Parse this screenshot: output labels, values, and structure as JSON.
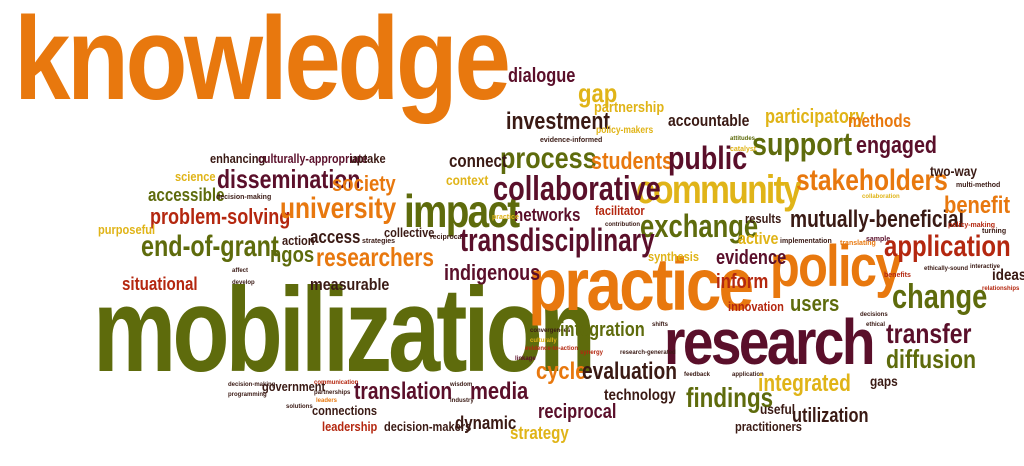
{
  "colors": {
    "orange": "#e8780e",
    "yellow": "#e0b418",
    "olive": "#5e6b0c",
    "maroon": "#5a0f2a",
    "red": "#b4270f",
    "dark": "#3a1a14",
    "background": "#ffffff"
  },
  "words": {
    "knowledge": "knowledge",
    "mobilization": "mobilization",
    "practice": "practice",
    "research": "research",
    "policy": "policy",
    "community": "community",
    "impact": "impact",
    "dialogue": "dialogue",
    "gap": "gap",
    "investment": "investment",
    "partnership": "partnership",
    "accountable": "accountable",
    "participatory": "participatory",
    "methods": "methods",
    "policy_makers": "policy-makers",
    "process": "process",
    "students": "students",
    "public": "public",
    "support": "support",
    "engaged": "engaged",
    "connect": "connect",
    "enhancing": "enhancing",
    "culturally_appropriate": "culturally-appropriate",
    "uptake": "uptake",
    "science": "science",
    "accessible": "accessible",
    "dissemination": "dissemination",
    "society": "society",
    "context": "context",
    "collaborative": "collaborative",
    "stakeholders": "stakeholders",
    "two_way": "two-way",
    "problem_solving": "problem-solving",
    "university": "university",
    "networks": "networks",
    "facilitator": "facilitator",
    "exchange": "exchange",
    "results": "results",
    "mutually_beneficial": "mutually-beneficial",
    "benefit": "benefit",
    "purposeful": "purposeful",
    "end_of_grant": "end-of-grant",
    "action": "action",
    "access": "access",
    "collective": "collective",
    "transdisciplinary": "transdisciplinary",
    "synthesis": "synthesis",
    "active": "active",
    "application": "application",
    "ngos": "ngos",
    "researchers": "researchers",
    "evidence": "evidence",
    "situational": "situational",
    "indigenous": "indigenous",
    "inform": "inform",
    "measurable": "measurable",
    "ideas": "ideas",
    "change": "change",
    "users": "users",
    "innovation": "innovation",
    "integration": "integration",
    "transfer": "transfer",
    "diffusion": "diffusion",
    "cycle": "cycle",
    "evaluation": "evaluation",
    "government": "government",
    "translation": "translation",
    "media": "media",
    "technology": "technology",
    "findings": "findings",
    "integrated": "integrated",
    "gaps": "gaps",
    "connections": "connections",
    "reciprocal": "reciprocal",
    "useful": "useful",
    "utilization": "utilization",
    "leadership": "leadership",
    "decision_makers": "decision-makers",
    "dynamic": "dynamic",
    "practitioners": "practitioners",
    "strategy": "strategy",
    "evidence_informed": "evidence-informed",
    "decision_making": "decision-making",
    "attitudes": "attitudes",
    "catalyst": "catalyst",
    "collaboration": "collaboration",
    "implementation": "implementation",
    "contribution": "contribution",
    "practice_small": "practice",
    "strategies": "strategies",
    "reciprocal_small": "reciprocal",
    "translating": "translating",
    "sample": "sample",
    "policy_making": "policy-making",
    "turning": "turning",
    "interactive": "interactive",
    "ethically_sound": "ethically-sound",
    "relationships": "relationships",
    "convergences": "convergences",
    "culturally": "culturally",
    "evidence_to_action": "evidence-to-action",
    "synergy": "synergy",
    "research_generated": "research-generated",
    "shifts": "shifts",
    "feedback": "feedback",
    "application_small": "application",
    "benefits": "benefits",
    "decisions": "decisions",
    "ethical": "ethical",
    "communication": "communication",
    "partnerships": "partnerships",
    "leaders": "leaders",
    "wisdom": "wisdom",
    "industry": "industry",
    "solutions": "solutions",
    "programming": "programming",
    "develop": "develop",
    "affect": "affect",
    "stakeholders_small": "stakeholders",
    "multi_method": "multi-method",
    "generating": "generating",
    "linkage": "linkage"
  }
}
